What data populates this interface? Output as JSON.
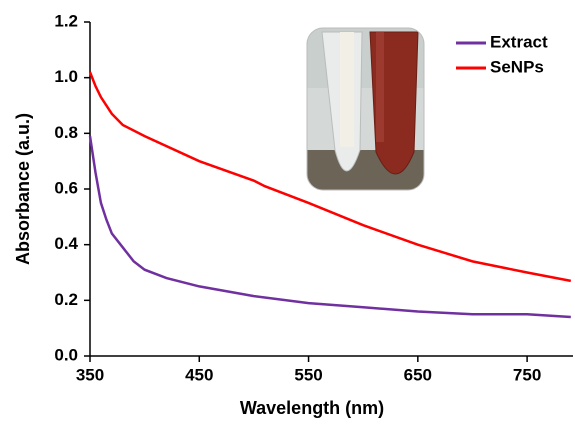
{
  "chart_data": {
    "type": "line",
    "x_label": "Wavelength (nm)",
    "y_label": "Absorbance (a.u.)",
    "xlim": [
      350,
      792
    ],
    "ylim": [
      0,
      1.2
    ],
    "xticks": [
      350,
      450,
      550,
      650,
      750
    ],
    "yticks": [
      {
        "value": 0,
        "label": "0.0"
      },
      0.2,
      0.4,
      0.6,
      0.8,
      {
        "value": 1,
        "label": "1.0"
      },
      1.2
    ],
    "legend": "upper right",
    "series": [
      {
        "name": "Extract",
        "color": "#7030a0",
        "x": [
          350,
          355,
          360,
          365,
          370,
          380,
          390,
          400,
          420,
          450,
          500,
          550,
          600,
          650,
          700,
          750,
          790
        ],
        "values": [
          0.79,
          0.66,
          0.55,
          0.49,
          0.44,
          0.39,
          0.34,
          0.31,
          0.28,
          0.25,
          0.215,
          0.19,
          0.175,
          0.16,
          0.15,
          0.15,
          0.14
        ]
      },
      {
        "name": "SeNPs",
        "color": "#ff0000",
        "x": [
          350,
          355,
          360,
          370,
          380,
          400,
          450,
          500,
          510,
          550,
          600,
          650,
          700,
          750,
          790
        ],
        "values": [
          1.02,
          0.97,
          0.93,
          0.87,
          0.83,
          0.79,
          0.7,
          0.63,
          0.61,
          0.55,
          0.47,
          0.4,
          0.34,
          0.3,
          0.27
        ]
      }
    ]
  }
}
